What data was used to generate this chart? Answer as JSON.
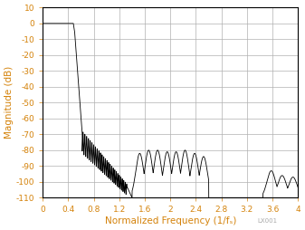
{
  "title": "",
  "xlabel": "Normalized Frequency (1/fₛ)",
  "ylabel": "Magnitude (dB)",
  "xlim": [
    0,
    4
  ],
  "ylim": [
    -110,
    10
  ],
  "xticks": [
    0,
    0.4,
    0.8,
    1.2,
    1.6,
    2.0,
    2.4,
    2.8,
    3.2,
    3.6,
    4.0
  ],
  "yticks": [
    10,
    0,
    -10,
    -20,
    -30,
    -40,
    -50,
    -60,
    -70,
    -80,
    -90,
    -100,
    -110
  ],
  "line_color": "#000000",
  "grid_color": "#b0b0b0",
  "axis_label_color": "#d4820a",
  "background_color": "#ffffff",
  "watermark": "LX001",
  "passband_end": 0.5,
  "stopband_floor": -110,
  "stopband_level": -103
}
